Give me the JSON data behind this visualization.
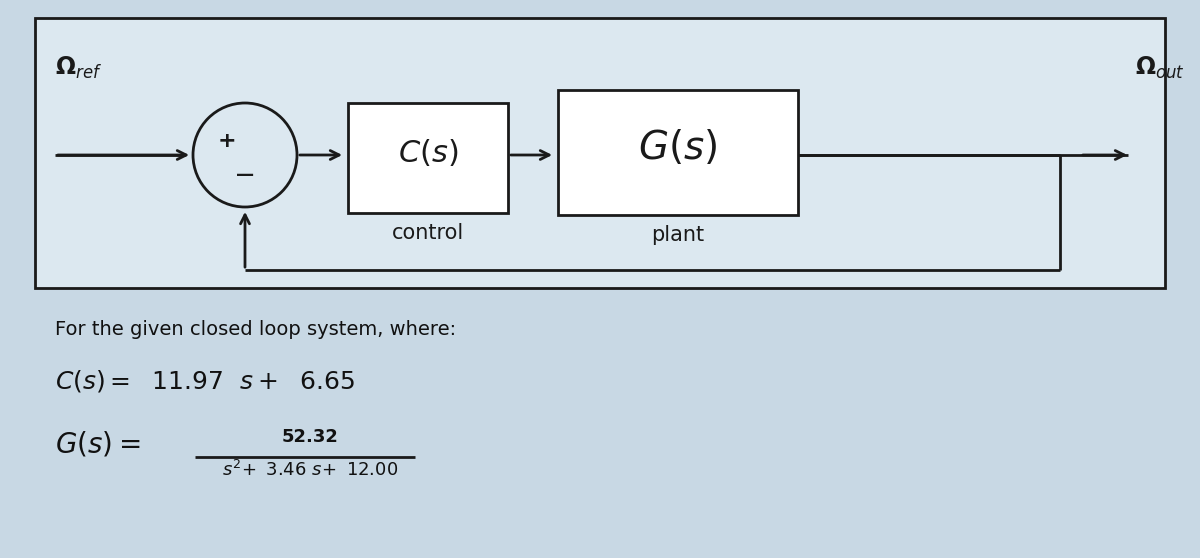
{
  "bg_color": "#c8d8e4",
  "diagram_bg": "#d8e5ed",
  "box_fill": "#ffffff",
  "line_color": "#1a1a1a",
  "text_color": "#111111",
  "text_intro": "For the given closed loop system, where:",
  "Cs_num": "11.97",
  "Cs_den": "6.65",
  "Gs_numerator": "52.32",
  "Gs_den_a": "3.46",
  "Gs_den_b": "12.00"
}
